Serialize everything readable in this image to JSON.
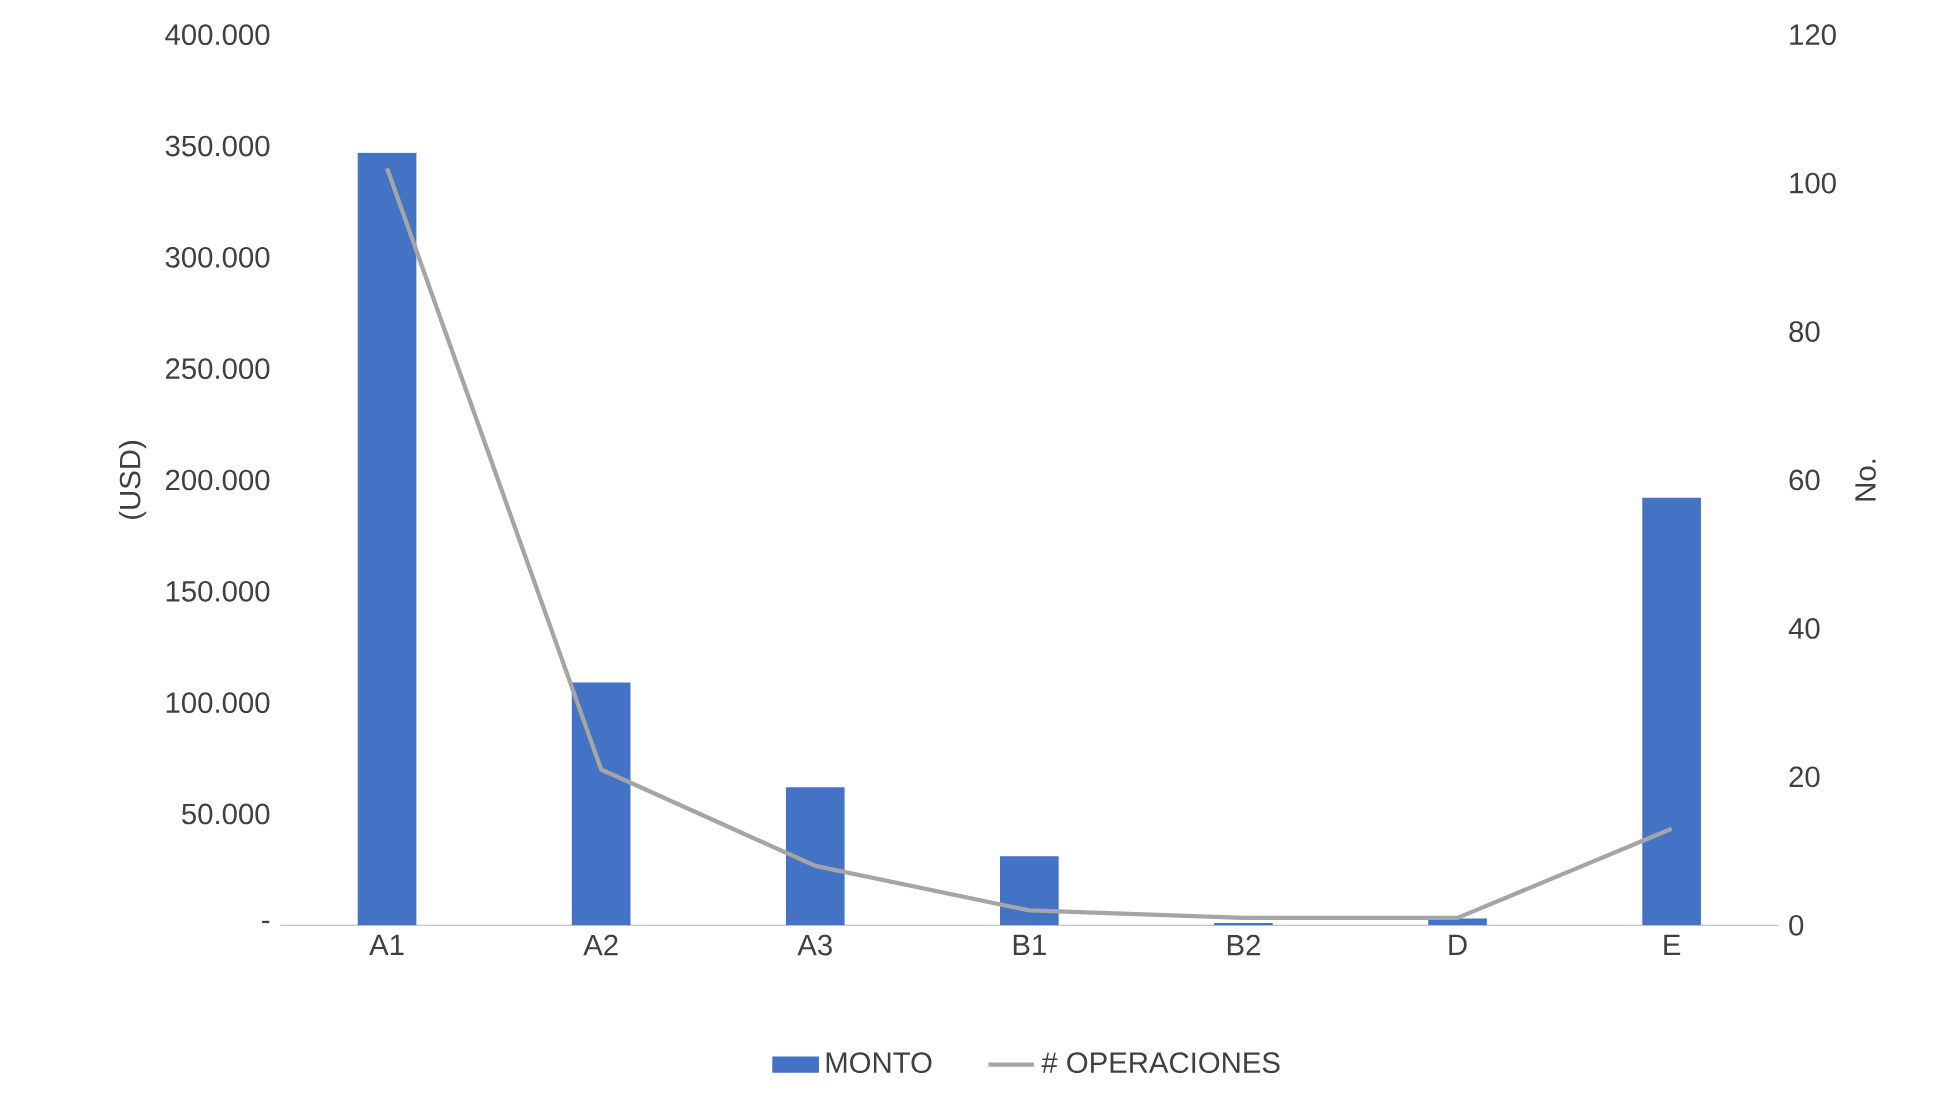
{
  "chart_data": {
    "type": "bar",
    "categories": [
      "A1",
      "A2",
      "A3",
      "B1",
      "B2",
      "D",
      "E"
    ],
    "series": [
      {
        "name": "MONTO",
        "color": "#4472c4",
        "values": [
          347000,
          109000,
          62000,
          31000,
          1000,
          3000,
          192000
        ]
      },
      {
        "name": "# OPERACIONES",
        "type": "line",
        "axis": "y2",
        "color": "#a5a5a5",
        "values": [
          102,
          21,
          8,
          2,
          1,
          1,
          13
        ]
      }
    ],
    "ylabel": "(USD)",
    "y2label": "No.",
    "ylim": [
      0,
      400000
    ],
    "yticks": [
      {
        "value": 0,
        "label": "-"
      },
      {
        "value": 50000,
        "label": "50.000"
      },
      {
        "value": 100000,
        "label": "100.000"
      },
      {
        "value": 150000,
        "label": "150.000"
      },
      {
        "value": 200000,
        "label": "200.000"
      },
      {
        "value": 250000,
        "label": "250.000"
      },
      {
        "value": 300000,
        "label": "300.000"
      },
      {
        "value": 350000,
        "label": "350.000"
      },
      {
        "value": 400000,
        "label": "400.000"
      }
    ],
    "y2lim": [
      0,
      120
    ],
    "y2ticks": [
      0,
      20,
      40,
      60,
      80,
      100,
      120
    ],
    "legend": "bottom"
  }
}
